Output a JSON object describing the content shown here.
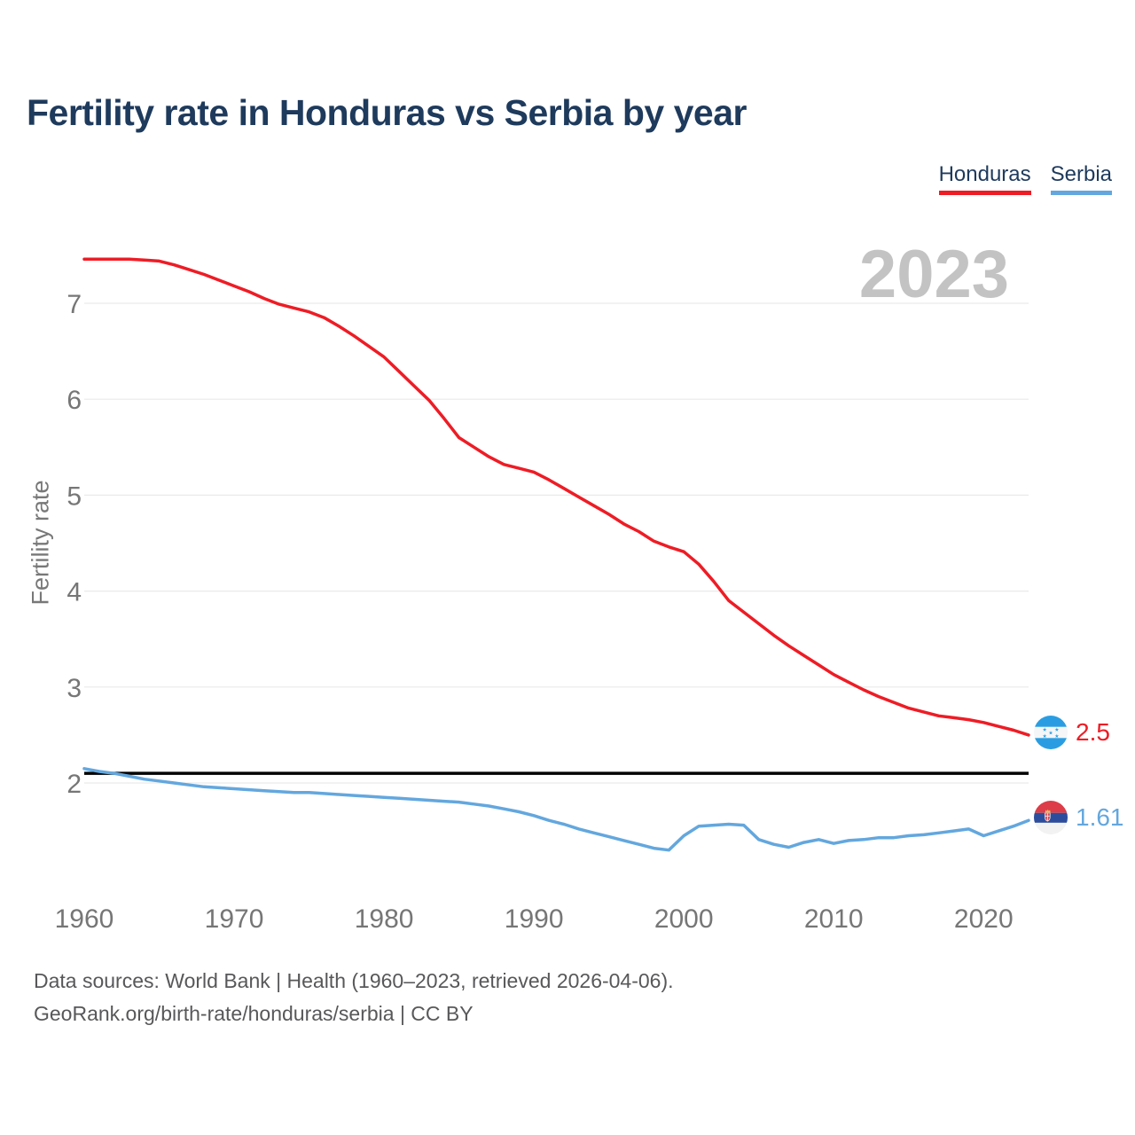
{
  "header": {
    "title": "Fertility rate in Honduras vs Serbia by year"
  },
  "legend": {
    "items": [
      {
        "label": "Honduras",
        "color": "#ee1c25"
      },
      {
        "label": "Serbia",
        "color": "#63a7de"
      }
    ]
  },
  "watermark": "2023",
  "end_labels": {
    "honduras": {
      "value": "2.5",
      "flag": "honduras-flag"
    },
    "serbia": {
      "value": "1.61",
      "flag": "serbia-flag"
    }
  },
  "footer": {
    "line1": "Data sources: World Bank | Health (1960–2023, retrieved 2026-04-06).",
    "line2": "GeoRank.org/birth-rate/honduras/serbia | CC BY"
  },
  "chart_data": {
    "type": "line",
    "title": "Fertility rate in Honduras vs Serbia by year",
    "xlabel": "",
    "ylabel": "Fertility rate",
    "xlim": [
      1960,
      2023
    ],
    "ylim": [
      1.25,
      7.6
    ],
    "yticks": [
      2,
      3,
      4,
      5,
      6,
      7
    ],
    "xticks": [
      1960,
      1970,
      1980,
      1990,
      2000,
      2010,
      2020
    ],
    "grid": "horizontal",
    "gridline_color": "#eaeaea",
    "legend_position": "top-right",
    "reference_line": {
      "value": 2.1,
      "color": "#000000"
    },
    "x": [
      1960,
      1961,
      1962,
      1963,
      1964,
      1965,
      1966,
      1967,
      1968,
      1969,
      1970,
      1971,
      1972,
      1973,
      1974,
      1975,
      1976,
      1977,
      1978,
      1979,
      1980,
      1981,
      1982,
      1983,
      1984,
      1985,
      1986,
      1987,
      1988,
      1989,
      1990,
      1991,
      1992,
      1993,
      1994,
      1995,
      1996,
      1997,
      1998,
      1999,
      2000,
      2001,
      2002,
      2003,
      2004,
      2005,
      2006,
      2007,
      2008,
      2009,
      2010,
      2011,
      2012,
      2013,
      2014,
      2015,
      2016,
      2017,
      2018,
      2019,
      2020,
      2021,
      2022,
      2023
    ],
    "series": [
      {
        "name": "Honduras",
        "color": "#ee1c25",
        "end_value": 2.5,
        "values": [
          7.46,
          7.46,
          7.46,
          7.46,
          7.45,
          7.44,
          7.4,
          7.35,
          7.3,
          7.24,
          7.18,
          7.12,
          7.05,
          6.99,
          6.95,
          6.91,
          6.85,
          6.76,
          6.66,
          6.55,
          6.44,
          6.29,
          6.14,
          5.99,
          5.8,
          5.6,
          5.5,
          5.4,
          5.32,
          5.28,
          5.24,
          5.16,
          5.07,
          4.98,
          4.89,
          4.8,
          4.7,
          4.62,
          4.52,
          4.46,
          4.41,
          4.28,
          4.1,
          3.9,
          3.78,
          3.66,
          3.54,
          3.43,
          3.33,
          3.23,
          3.13,
          3.05,
          2.97,
          2.9,
          2.84,
          2.78,
          2.74,
          2.7,
          2.68,
          2.66,
          2.63,
          2.59,
          2.55,
          2.5
        ]
      },
      {
        "name": "Serbia",
        "color": "#63a7de",
        "end_value": 1.61,
        "values": [
          2.15,
          2.12,
          2.1,
          2.07,
          2.04,
          2.02,
          2.0,
          1.98,
          1.96,
          1.95,
          1.94,
          1.93,
          1.92,
          1.91,
          1.9,
          1.9,
          1.89,
          1.88,
          1.87,
          1.86,
          1.85,
          1.84,
          1.83,
          1.82,
          1.81,
          1.8,
          1.78,
          1.76,
          1.73,
          1.7,
          1.66,
          1.61,
          1.57,
          1.52,
          1.48,
          1.44,
          1.4,
          1.36,
          1.32,
          1.3,
          1.45,
          1.55,
          1.56,
          1.57,
          1.56,
          1.41,
          1.36,
          1.33,
          1.38,
          1.41,
          1.37,
          1.4,
          1.41,
          1.43,
          1.43,
          1.45,
          1.46,
          1.48,
          1.5,
          1.52,
          1.45,
          1.5,
          1.55,
          1.61
        ]
      }
    ]
  }
}
